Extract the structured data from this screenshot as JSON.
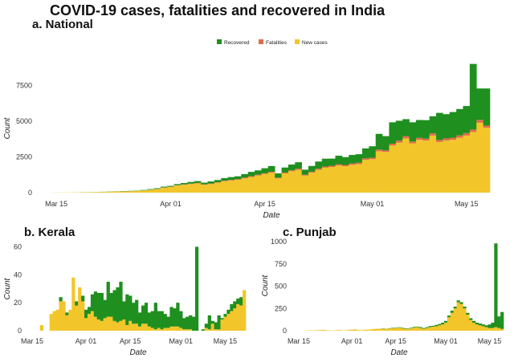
{
  "title": "COVID-19 cases, fatalities and recovered in India",
  "colors": {
    "recovered": "#1f8f1f",
    "fatalities": "#e06c4a",
    "new_cases": "#f2c62a"
  },
  "legend": [
    "Recovered",
    "Fatalities",
    "New cases"
  ],
  "chart_data": [
    {
      "type": "bar",
      "panel": "a. National",
      "stacked": true,
      "xlabel": "Date",
      "ylabel": "Count",
      "ylim": [
        0,
        9000
      ],
      "yticks": [
        0,
        2500,
        5000,
        7500
      ],
      "x_tick_labels": [
        "Mar 15",
        "Apr 01",
        "Apr 15",
        "May 01",
        "May 15"
      ],
      "x_tick_days": [
        0,
        17,
        31,
        47,
        61
      ],
      "days": 65,
      "series": [
        {
          "name": "New cases",
          "values": [
            10,
            10,
            15,
            20,
            25,
            30,
            40,
            50,
            70,
            80,
            90,
            100,
            120,
            150,
            200,
            250,
            350,
            400,
            500,
            550,
            600,
            650,
            550,
            600,
            700,
            800,
            850,
            900,
            1000,
            1100,
            1200,
            1300,
            1400,
            1000,
            1350,
            1500,
            1600,
            1200,
            1400,
            1600,
            1750,
            1800,
            1900,
            1850,
            1950,
            2000,
            2300,
            2350,
            2900,
            2850,
            3300,
            3500,
            3800,
            3450,
            3700,
            3650,
            4000,
            3550,
            3650,
            3700,
            3850,
            4000,
            4250,
            4900,
            4550
          ]
        },
        {
          "name": "Fatalities",
          "values": [
            0,
            0,
            0,
            0,
            0,
            0,
            1,
            1,
            2,
            3,
            3,
            4,
            5,
            6,
            8,
            10,
            12,
            15,
            20,
            25,
            30,
            30,
            30,
            35,
            35,
            40,
            40,
            45,
            50,
            55,
            60,
            60,
            65,
            50,
            60,
            70,
            80,
            60,
            70,
            80,
            80,
            85,
            90,
            90,
            90,
            95,
            100,
            100,
            120,
            110,
            130,
            140,
            150,
            130,
            140,
            130,
            150,
            140,
            150,
            150,
            160,
            170,
            170,
            200,
            150
          ]
        },
        {
          "name": "Recovered",
          "values": [
            0,
            0,
            0,
            0,
            5,
            5,
            5,
            10,
            10,
            10,
            20,
            20,
            20,
            30,
            40,
            50,
            60,
            60,
            80,
            100,
            120,
            130,
            120,
            150,
            150,
            180,
            200,
            200,
            250,
            300,
            300,
            350,
            400,
            300,
            350,
            400,
            450,
            350,
            400,
            500,
            550,
            500,
            600,
            550,
            600,
            600,
            700,
            800,
            1100,
            1000,
            1500,
            1400,
            1200,
            1350,
            1250,
            1300,
            1200,
            1900,
            1700,
            1800,
            1850,
            1900,
            4600,
            2200,
            2600
          ]
        }
      ]
    },
    {
      "type": "bar",
      "panel": "b. Kerala",
      "stacked": true,
      "xlabel": "Date",
      "ylabel": "Count",
      "ylim": [
        0,
        62
      ],
      "yticks": [
        0,
        20,
        40,
        60
      ],
      "x_tick_labels": [
        "Mar 15",
        "Apr 01",
        "Apr 15",
        "May 01",
        "May 15"
      ],
      "x_tick_days": [
        0,
        17,
        31,
        47,
        61
      ],
      "days": 68,
      "series": [
        {
          "name": "New cases",
          "values": [
            0,
            0,
            0,
            4,
            0,
            0,
            12,
            14,
            15,
            21,
            21,
            11,
            15,
            38,
            18,
            31,
            21,
            9,
            12,
            14,
            10,
            8,
            7,
            9,
            10,
            10,
            7,
            6,
            7,
            8,
            4,
            7,
            5,
            5,
            3,
            5,
            5,
            3,
            2,
            1,
            2,
            1,
            2,
            2,
            3,
            3,
            3,
            2,
            1,
            1,
            1,
            0,
            0,
            0,
            0,
            2,
            1,
            5,
            1,
            1,
            8,
            10,
            12,
            14,
            16,
            19,
            18,
            29
          ]
        },
        {
          "name": "Fatalities",
          "values": [
            0,
            0,
            0,
            0,
            0,
            0,
            0,
            0,
            0,
            0,
            0,
            0,
            0,
            0,
            0,
            0,
            0,
            0,
            0,
            0,
            0,
            0,
            0,
            0,
            0,
            0,
            0,
            0,
            0,
            0,
            0,
            0,
            0,
            0,
            0,
            0,
            0,
            0,
            0,
            0,
            0,
            0,
            0,
            0,
            0,
            0,
            0,
            0,
            0,
            0,
            0,
            0,
            0,
            0,
            0,
            0,
            0,
            0,
            0,
            0,
            0,
            0,
            0,
            0,
            0,
            0,
            0,
            0
          ]
        },
        {
          "name": "Recovered",
          "values": [
            0,
            0,
            0,
            0,
            0,
            0,
            0,
            0,
            0,
            3,
            0,
            2,
            0,
            0,
            3,
            0,
            4,
            6,
            5,
            12,
            18,
            19,
            20,
            13,
            25,
            17,
            22,
            25,
            28,
            13,
            22,
            18,
            15,
            17,
            10,
            13,
            15,
            10,
            12,
            19,
            12,
            13,
            10,
            8,
            14,
            13,
            17,
            12,
            8,
            9,
            10,
            10,
            60,
            0,
            1,
            3,
            10,
            2,
            5,
            10,
            1,
            2,
            3,
            5,
            5,
            4,
            6,
            0
          ]
        }
      ]
    },
    {
      "type": "bar",
      "panel": "c. Punjab",
      "stacked": true,
      "xlabel": "Date",
      "ylabel": "Count",
      "ylim": [
        0,
        1000
      ],
      "yticks": [
        0,
        250,
        500,
        750,
        1000
      ],
      "x_tick_labels": [
        "Mar 15",
        "Apr 01",
        "Apr 15",
        "May 01",
        "May 15"
      ],
      "x_tick_days": [
        0,
        17,
        31,
        47,
        61
      ],
      "days": 66,
      "series": [
        {
          "name": "New cases",
          "values": [
            0,
            0,
            2,
            3,
            5,
            4,
            6,
            8,
            10,
            5,
            4,
            3,
            6,
            8,
            4,
            5,
            10,
            12,
            15,
            8,
            6,
            10,
            12,
            14,
            20,
            22,
            18,
            25,
            20,
            25,
            30,
            28,
            35,
            30,
            22,
            20,
            28,
            35,
            40,
            30,
            22,
            30,
            40,
            45,
            50,
            60,
            70,
            90,
            150,
            200,
            250,
            320,
            300,
            250,
            180,
            120,
            90,
            70,
            60,
            50,
            40,
            30,
            30,
            40,
            30,
            20
          ]
        },
        {
          "name": "Fatalities",
          "values": [
            0,
            0,
            0,
            0,
            0,
            0,
            0,
            0,
            0,
            0,
            0,
            0,
            0,
            0,
            0,
            0,
            0,
            0,
            0,
            0,
            0,
            0,
            0,
            0,
            0,
            0,
            0,
            0,
            0,
            0,
            0,
            0,
            0,
            0,
            0,
            0,
            0,
            0,
            0,
            0,
            0,
            0,
            0,
            0,
            0,
            0,
            0,
            0,
            0,
            0,
            0,
            0,
            0,
            0,
            0,
            0,
            0,
            0,
            0,
            0,
            0,
            0,
            0,
            0,
            0,
            0
          ]
        },
        {
          "name": "Recovered",
          "values": [
            0,
            0,
            0,
            0,
            0,
            0,
            0,
            0,
            0,
            0,
            0,
            0,
            0,
            0,
            0,
            0,
            0,
            0,
            0,
            0,
            0,
            0,
            0,
            0,
            0,
            0,
            2,
            3,
            2,
            3,
            4,
            5,
            4,
            5,
            6,
            5,
            6,
            8,
            6,
            10,
            8,
            10,
            12,
            10,
            15,
            15,
            20,
            20,
            20,
            25,
            20,
            20,
            20,
            20,
            20,
            20,
            20,
            20,
            20,
            20,
            20,
            40,
            60,
            940,
            130,
            190
          ]
        }
      ]
    }
  ]
}
